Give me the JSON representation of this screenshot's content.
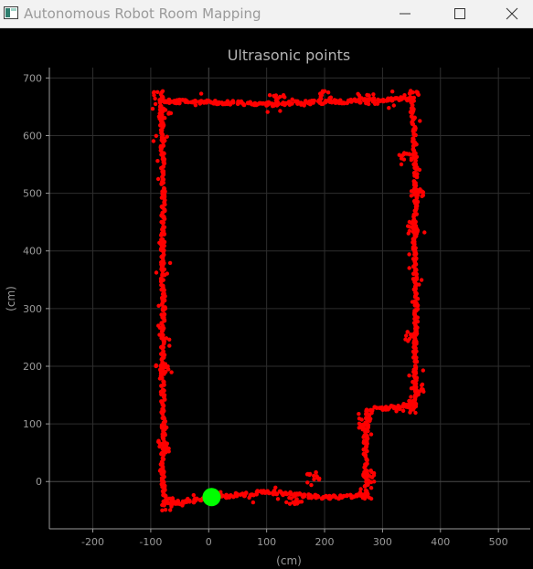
{
  "window": {
    "title": "Autonomous Robot Room Mapping",
    "icon": "app-window-icon",
    "controls": [
      "minimize-icon",
      "maximize-icon",
      "close-icon"
    ]
  },
  "colors": {
    "background": "#000000",
    "points": "#ff0000",
    "robot": "#00ff00",
    "axis": "#9a9a9a",
    "grid": "#2e2e2e"
  },
  "chart_data": {
    "type": "scatter",
    "title": "Ultrasonic points",
    "xlabel": "(cm)",
    "ylabel": "(cm)",
    "xlim": [
      -275,
      555
    ],
    "ylim": [
      -82,
      718
    ],
    "xticks": [
      -200,
      -100,
      0,
      100,
      200,
      300,
      400,
      500
    ],
    "yticks": [
      0,
      100,
      200,
      300,
      400,
      500,
      600,
      700
    ],
    "grid": true,
    "series": [
      {
        "kind": "ultrasonic-points",
        "color": "#ff0000",
        "path": [
          [
            -75,
            -38
          ],
          [
            -80,
            0
          ],
          [
            -78,
            100
          ],
          [
            -80,
            200
          ],
          [
            -78,
            300
          ],
          [
            -80,
            400
          ],
          [
            -78,
            500
          ],
          [
            -80,
            600
          ],
          [
            -82,
            660
          ],
          [
            0,
            658
          ],
          [
            100,
            655
          ],
          [
            200,
            658
          ],
          [
            300,
            662
          ],
          [
            350,
            665
          ],
          [
            355,
            600
          ],
          [
            358,
            500
          ],
          [
            355,
            400
          ],
          [
            358,
            300
          ],
          [
            356,
            200
          ],
          [
            355,
            130
          ],
          [
            310,
            128
          ],
          [
            275,
            125
          ],
          [
            270,
            60
          ],
          [
            272,
            0
          ],
          [
            270,
            -25
          ],
          [
            200,
            -28
          ],
          [
            100,
            -18
          ],
          [
            30,
            -25
          ],
          [
            0,
            -30
          ],
          [
            -40,
            -35
          ],
          [
            -75,
            -38
          ]
        ],
        "clusters": [
          [
            -85,
            668
          ],
          [
            -75,
            640
          ],
          [
            -80,
            200
          ],
          [
            -78,
            60
          ],
          [
            -72,
            -40
          ],
          [
            120,
            660
          ],
          [
            200,
            668
          ],
          [
            268,
            665
          ],
          [
            352,
            668
          ],
          [
            340,
            560
          ],
          [
            360,
            500
          ],
          [
            352,
            440
          ],
          [
            350,
            250
          ],
          [
            360,
            160
          ],
          [
            345,
            130
          ],
          [
            270,
            100
          ],
          [
            275,
            10
          ],
          [
            270,
            -20
          ],
          [
            180,
            5
          ],
          [
            150,
            -28
          ]
        ]
      },
      {
        "kind": "robot-position",
        "color": "#00ff00",
        "points": [
          [
            5,
            -27
          ]
        ]
      }
    ]
  }
}
